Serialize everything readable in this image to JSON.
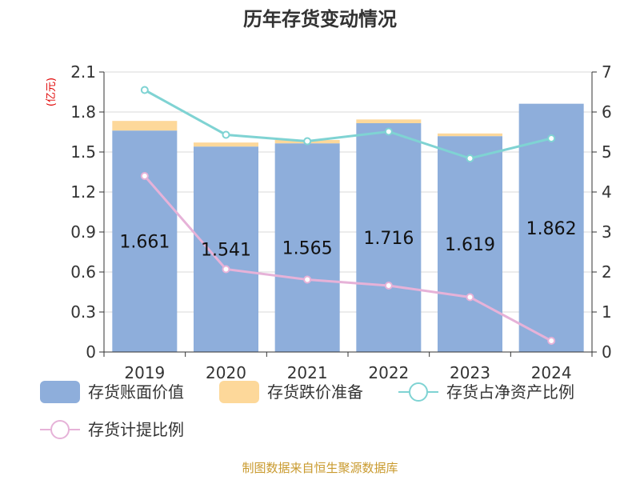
{
  "chart_data": {
    "type": "bar",
    "title": "历年存货变动情况",
    "unit_label": "(亿元)",
    "categories": [
      "2019",
      "2020",
      "2021",
      "2022",
      "2023",
      "2024"
    ],
    "y_left": {
      "min": 0,
      "max": 2.1,
      "ticks": [
        "0",
        "0.3",
        "0.6",
        "0.9",
        "1.2",
        "1.5",
        "1.8",
        "2.1"
      ]
    },
    "y_right": {
      "min": 0,
      "max": 7,
      "ticks": [
        "0",
        "1",
        "2",
        "3",
        "4",
        "5",
        "6",
        "7"
      ]
    },
    "bar_labels": [
      "1.661",
      "1.541",
      "1.565",
      "1.716",
      "1.619",
      "1.862"
    ],
    "series": [
      {
        "name": "存货账面价值",
        "kind": "bar",
        "axis": "left",
        "color": "#8eaedb",
        "values": [
          1.661,
          1.541,
          1.565,
          1.716,
          1.619,
          1.862
        ]
      },
      {
        "name": "存货跌价准备",
        "kind": "bar-stack",
        "axis": "left",
        "color": "#fdd89a",
        "values": [
          0.072,
          0.03,
          0.025,
          0.028,
          0.02,
          0.0
        ]
      },
      {
        "name": "存货占净资产比例",
        "kind": "line",
        "axis": "right",
        "color": "#7fd3d3",
        "values": [
          6.55,
          5.43,
          5.27,
          5.51,
          4.84,
          5.34
        ]
      },
      {
        "name": "存货计提比例",
        "kind": "line",
        "axis": "right",
        "color": "#e6b2d8",
        "values": [
          4.4,
          2.07,
          1.81,
          1.66,
          1.37,
          0.28
        ]
      }
    ],
    "grid": true,
    "legend": "bottom"
  },
  "footer": {
    "source": "制图数据来自恒生聚源数据库"
  }
}
